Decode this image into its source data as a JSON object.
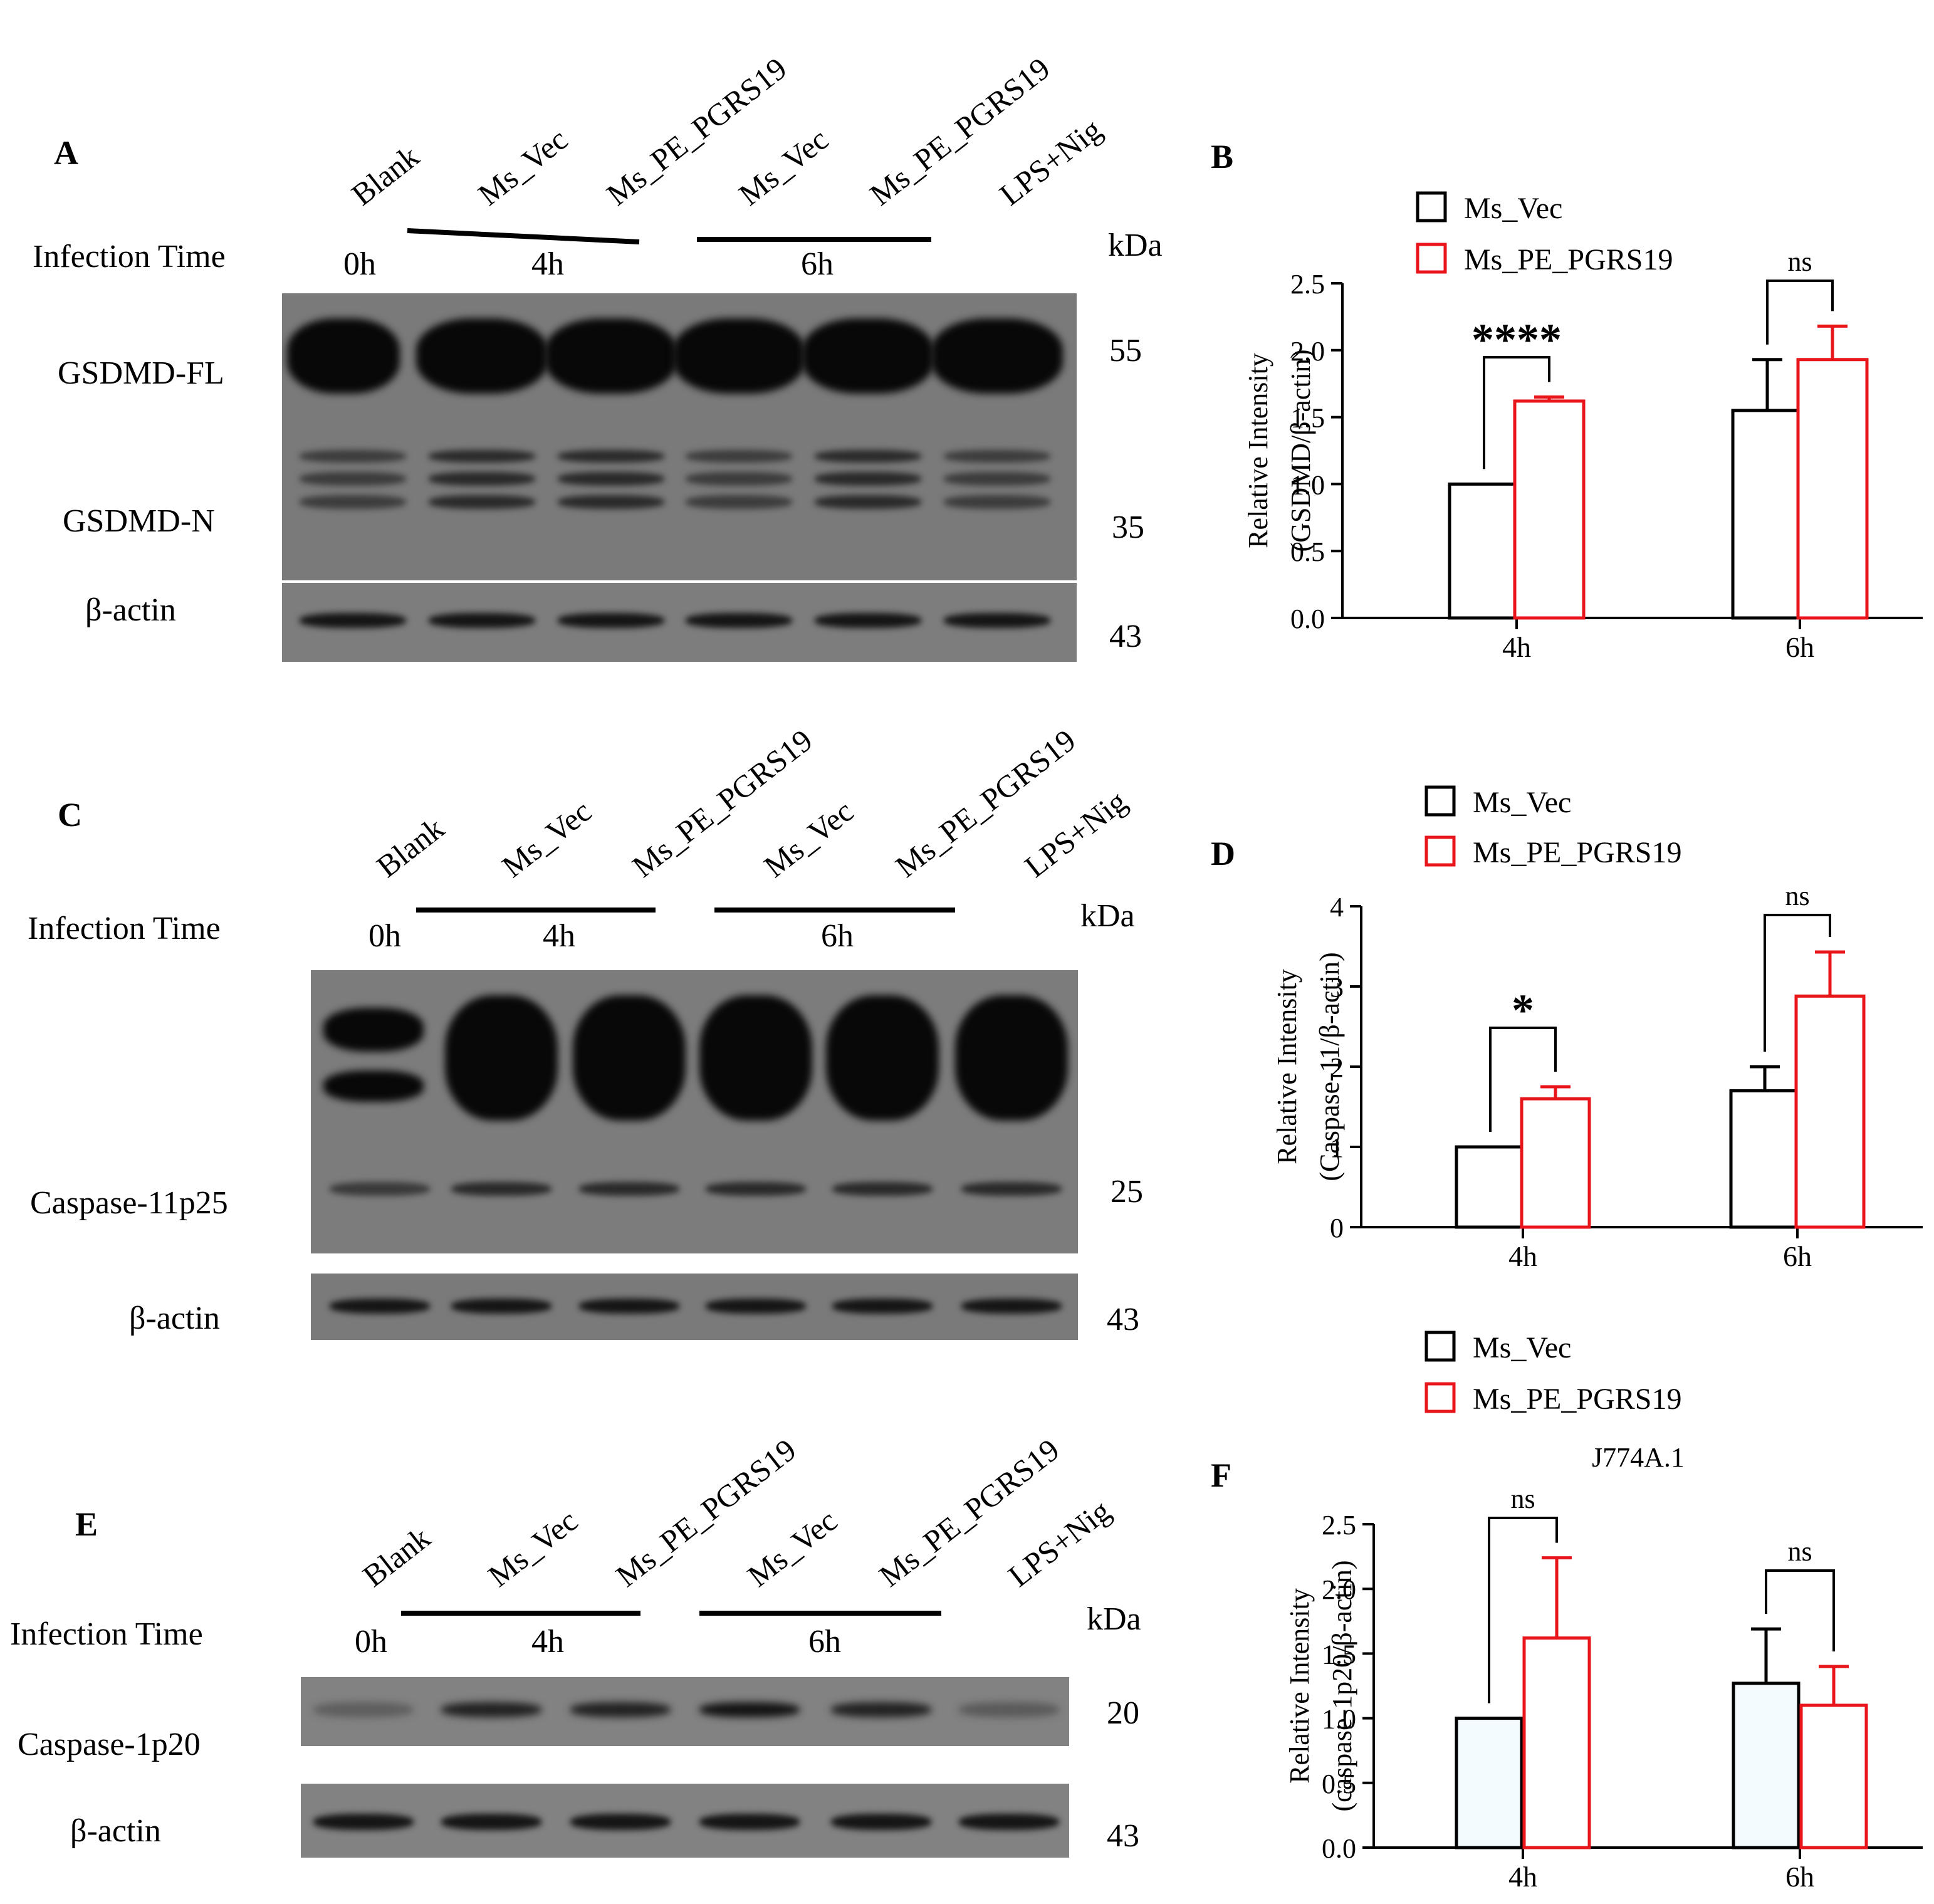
{
  "figure": {
    "colors": {
      "vec": "#000000",
      "pe": "#e8161b",
      "blot_bg": "#6a6a6a",
      "band": "#080808"
    },
    "blots": [
      {
        "panel": "A",
        "lanes": [
          "Blank",
          "Ms_Vec",
          "Ms_PE_PGRS19",
          "Ms_Vec",
          "Ms_PE_PGRS19",
          "LPS+Nig"
        ],
        "times": [
          "0h",
          "4h",
          "6h"
        ],
        "infection_label": "Infection Time",
        "kda_label": "kDa",
        "rows": [
          {
            "protein": "GSDMD-FL",
            "kda": "55"
          },
          {
            "protein": "GSDMD-N",
            "kda": "35"
          },
          {
            "protein": "β-actin",
            "kda": "43"
          }
        ]
      },
      {
        "panel": "C",
        "lanes": [
          "Blank",
          "Ms_Vec",
          "Ms_PE_PGRS19",
          "Ms_Vec",
          "Ms_PE_PGRS19",
          "LPS+Nig"
        ],
        "times": [
          "0h",
          "4h",
          "6h"
        ],
        "infection_label": "Infection Time",
        "kda_label": "kDa",
        "rows": [
          {
            "protein": "Caspase-11p25",
            "kda": "25"
          },
          {
            "protein": "β-actin",
            "kda": "43"
          }
        ]
      },
      {
        "panel": "E",
        "lanes": [
          "Blank",
          "Ms_Vec",
          "Ms_PE_PGRS19",
          "Ms_Vec",
          "Ms_PE_PGRS19",
          "LPS+Nig"
        ],
        "times": [
          "0h",
          "4h",
          "6h"
        ],
        "infection_label": "Infection Time",
        "kda_label": "kDa",
        "rows": [
          {
            "protein": "Caspase-1p20",
            "kda": "20"
          },
          {
            "protein": "β-actin",
            "kda": "43"
          }
        ]
      }
    ]
  },
  "chart_data": [
    {
      "panel": "B",
      "type": "bar",
      "categories": [
        "4h",
        "6h"
      ],
      "series": [
        {
          "name": "Ms_Vec",
          "values": [
            1.0,
            1.55
          ],
          "error": [
            0,
            0.38
          ]
        },
        {
          "name": "Ms_PE_PGRS19",
          "values": [
            1.62,
            1.93
          ],
          "error": [
            0.03,
            0.25
          ]
        }
      ],
      "ylabel_lines": [
        "Relative Intensity",
        "(GSDMD/β-actin)"
      ],
      "ylim": [
        0,
        2.5
      ],
      "yticks": [
        "0.0",
        "0.5",
        "1.0",
        "1.5",
        "2.0",
        "2.5"
      ],
      "significance": [
        "****",
        "ns"
      ],
      "subtitle": "",
      "legend_position": "top-left"
    },
    {
      "panel": "D",
      "type": "bar",
      "categories": [
        "4h",
        "6h"
      ],
      "series": [
        {
          "name": "Ms_Vec",
          "values": [
            1.0,
            1.7
          ],
          "error": [
            0,
            0.3
          ]
        },
        {
          "name": "Ms_PE_PGRS19",
          "values": [
            1.6,
            2.88
          ],
          "error": [
            0.15,
            0.55
          ]
        }
      ],
      "ylabel_lines": [
        "Relative Intensity",
        "(Caspase-11/β-actin)"
      ],
      "ylim": [
        0,
        4
      ],
      "yticks": [
        "0",
        "1",
        "2",
        "3",
        "4"
      ],
      "significance": [
        "*",
        "ns"
      ],
      "subtitle": "",
      "legend_position": "top-left"
    },
    {
      "panel": "F",
      "type": "bar",
      "categories": [
        "4h",
        "6h"
      ],
      "series": [
        {
          "name": "Ms_Vec",
          "values": [
            1.0,
            1.27
          ],
          "error": [
            0,
            0.42
          ]
        },
        {
          "name": "Ms_PE_PGRS19",
          "values": [
            1.62,
            1.1
          ],
          "error": [
            0.62,
            0.3
          ]
        }
      ],
      "ylabel_lines": [
        "Relative Intensity",
        "(caspase-1p20/β-actin)"
      ],
      "ylim": [
        0,
        2.5
      ],
      "yticks": [
        "0.0",
        "0.5",
        "1.0",
        "1.5",
        "2.0",
        "2.5"
      ],
      "significance": [
        "ns",
        "ns"
      ],
      "subtitle": "J774A.1",
      "legend_position": "top-left"
    }
  ]
}
